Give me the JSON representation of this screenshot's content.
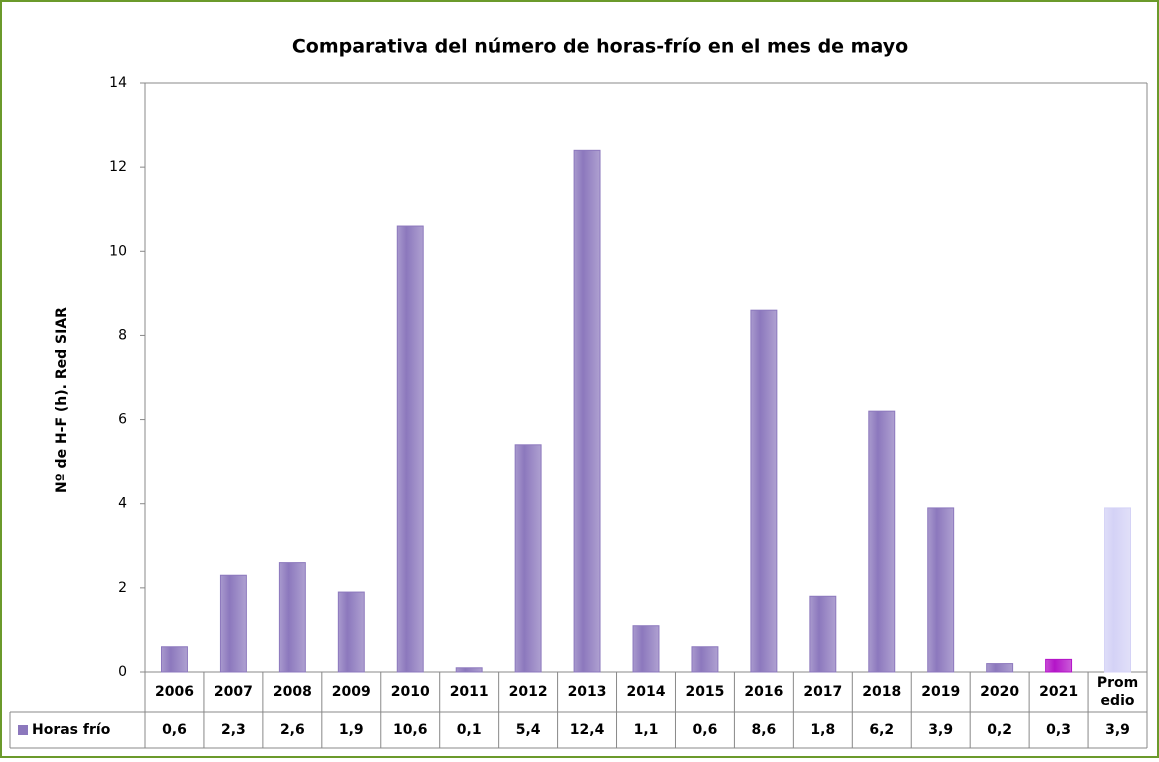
{
  "chart_data": {
    "type": "bar",
    "title": "Comparativa del número de horas-frío en el mes de mayo",
    "y_label": "Nº de H-F (h). Red SIAR",
    "categories": [
      "2006",
      "2007",
      "2008",
      "2009",
      "2010",
      "2011",
      "2012",
      "2013",
      "2014",
      "2015",
      "2016",
      "2017",
      "2018",
      "2019",
      "2020",
      "2021",
      "Promedio"
    ],
    "series": [
      {
        "name": "Horas frío",
        "color": "#8c78bd",
        "colors": [
          "#8c78bd",
          "#8c78bd",
          "#8c78bd",
          "#8c78bd",
          "#8c78bd",
          "#8c78bd",
          "#8c78bd",
          "#8c78bd",
          "#8c78bd",
          "#8c78bd",
          "#8c78bd",
          "#8c78bd",
          "#8c78bd",
          "#8c78bd",
          "#8c78bd",
          "#b414c8",
          "#d4d2f6"
        ],
        "values": [
          0.6,
          2.3,
          2.6,
          1.9,
          10.6,
          0.1,
          5.4,
          12.4,
          1.1,
          0.6,
          8.6,
          1.8,
          6.2,
          3.9,
          0.2,
          0.3,
          3.9
        ],
        "value_labels": [
          "0,6",
          "2,3",
          "2,6",
          "1,9",
          "10,6",
          "0,1",
          "5,4",
          "12,4",
          "1,1",
          "0,6",
          "8,6",
          "1,8",
          "6,2",
          "3,9",
          "0,2",
          "0,3",
          "3,9"
        ]
      }
    ],
    "ylim": [
      0,
      14
    ],
    "yticks": [
      0,
      2,
      4,
      6,
      8,
      10,
      12,
      14
    ],
    "grid": false
  }
}
